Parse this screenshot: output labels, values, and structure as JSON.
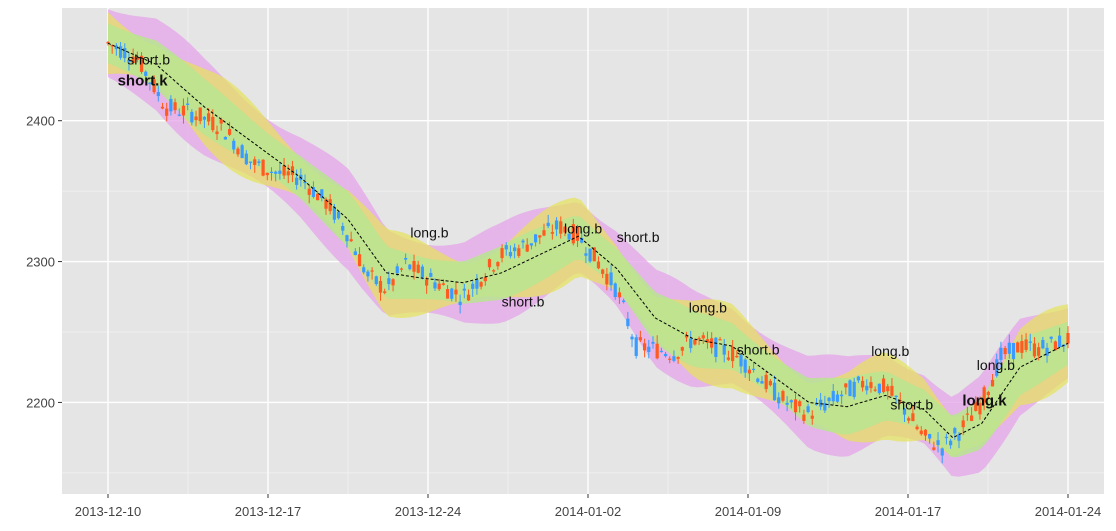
{
  "chart_data": {
    "type": "candlestick",
    "title": "",
    "xlabel": "",
    "ylabel": "",
    "ylim": [
      2135,
      2480
    ],
    "y_ticks": [
      2200,
      2300,
      2400
    ],
    "x_ticks": [
      "2013-12-10",
      "2013-12-17",
      "2013-12-24",
      "2014-01-02",
      "2014-01-09",
      "2014-01-17",
      "2014-01-24"
    ],
    "grid": true,
    "legend": "none",
    "colors": {
      "panel": "#e5e5e5",
      "grid_major": "#ffffff",
      "up": "#ff5a1f",
      "down": "#3a9bff",
      "band_outer": "#e4a3e8",
      "band_mid": "#b8e58f",
      "band_inner": "#e6e35a",
      "ma_line": "#000000"
    },
    "price_path": [
      [
        0,
        2455
      ],
      [
        0.03,
        2445
      ],
      [
        0.06,
        2410
      ],
      [
        0.09,
        2405
      ],
      [
        0.12,
        2395
      ],
      [
        0.15,
        2370
      ],
      [
        0.18,
        2362
      ],
      [
        0.2,
        2360
      ],
      [
        0.23,
        2340
      ],
      [
        0.25,
        2320
      ],
      [
        0.27,
        2290
      ],
      [
        0.29,
        2280
      ],
      [
        0.31,
        2298
      ],
      [
        0.33,
        2290
      ],
      [
        0.35,
        2282
      ],
      [
        0.37,
        2275
      ],
      [
        0.39,
        2290
      ],
      [
        0.41,
        2305
      ],
      [
        0.43,
        2310
      ],
      [
        0.45,
        2318
      ],
      [
        0.47,
        2325
      ],
      [
        0.49,
        2318
      ],
      [
        0.51,
        2300
      ],
      [
        0.53,
        2280
      ],
      [
        0.55,
        2240
      ],
      [
        0.57,
        2238
      ],
      [
        0.59,
        2235
      ],
      [
        0.61,
        2245
      ],
      [
        0.63,
        2240
      ],
      [
        0.65,
        2235
      ],
      [
        0.67,
        2225
      ],
      [
        0.69,
        2210
      ],
      [
        0.71,
        2198
      ],
      [
        0.73,
        2192
      ],
      [
        0.75,
        2200
      ],
      [
        0.77,
        2208
      ],
      [
        0.79,
        2215
      ],
      [
        0.81,
        2210
      ],
      [
        0.83,
        2195
      ],
      [
        0.85,
        2175
      ],
      [
        0.87,
        2168
      ],
      [
        0.89,
        2182
      ],
      [
        0.91,
        2200
      ],
      [
        0.93,
        2232
      ],
      [
        0.95,
        2240
      ],
      [
        0.97,
        2238
      ],
      [
        1.0,
        2245
      ]
    ],
    "moving_average": [
      [
        0,
        2455
      ],
      [
        0.05,
        2440
      ],
      [
        0.1,
        2410
      ],
      [
        0.15,
        2385
      ],
      [
        0.2,
        2360
      ],
      [
        0.25,
        2330
      ],
      [
        0.29,
        2292
      ],
      [
        0.33,
        2288
      ],
      [
        0.37,
        2285
      ],
      [
        0.41,
        2292
      ],
      [
        0.45,
        2305
      ],
      [
        0.49,
        2318
      ],
      [
        0.53,
        2295
      ],
      [
        0.57,
        2260
      ],
      [
        0.61,
        2245
      ],
      [
        0.65,
        2240
      ],
      [
        0.69,
        2220
      ],
      [
        0.73,
        2200
      ],
      [
        0.77,
        2197
      ],
      [
        0.81,
        2205
      ],
      [
        0.85,
        2195
      ],
      [
        0.88,
        2175
      ],
      [
        0.91,
        2185
      ],
      [
        0.95,
        2225
      ],
      [
        1.0,
        2242
      ]
    ],
    "annotations": [
      {
        "text": "short.b",
        "x": 0.02,
        "y": 2440,
        "bold": false
      },
      {
        "text": "short.k",
        "x": 0.01,
        "y": 2425,
        "bold": true
      },
      {
        "text": "long.b",
        "x": 0.315,
        "y": 2317,
        "bold": false
      },
      {
        "text": "short.b",
        "x": 0.41,
        "y": 2268,
        "bold": false
      },
      {
        "text": "long.b",
        "x": 0.475,
        "y": 2320,
        "bold": false
      },
      {
        "text": "short.b",
        "x": 0.53,
        "y": 2314,
        "bold": false
      },
      {
        "text": "long.b",
        "x": 0.605,
        "y": 2264,
        "bold": false
      },
      {
        "text": "short.b",
        "x": 0.655,
        "y": 2234,
        "bold": false
      },
      {
        "text": "long.b",
        "x": 0.795,
        "y": 2233,
        "bold": false
      },
      {
        "text": "short.b",
        "x": 0.815,
        "y": 2195,
        "bold": false
      },
      {
        "text": "long.b",
        "x": 0.905,
        "y": 2223,
        "bold": false
      },
      {
        "text": "long.k",
        "x": 0.89,
        "y": 2198,
        "bold": true
      }
    ]
  }
}
